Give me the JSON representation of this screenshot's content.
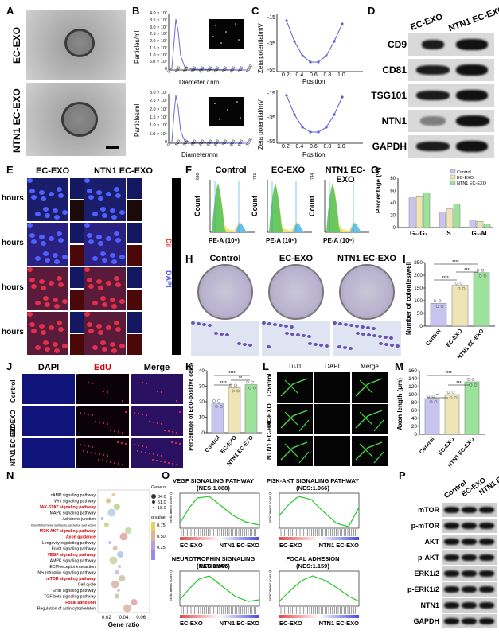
{
  "panels": [
    "A",
    "B",
    "C",
    "D",
    "E",
    "F",
    "G",
    "H",
    "I",
    "J",
    "K",
    "L",
    "M",
    "N",
    "O",
    "P"
  ],
  "panelA": {
    "rows": [
      "EC-EXO",
      "NTN1 EC-EXO"
    ]
  },
  "panelB": {
    "ylabel": "Particles/ml",
    "xlabel_top": "Diameter / nm",
    "xlabel_bottom": "Diameter/nm",
    "yticks_top": [
      "0",
      "5.0 × 10⁶",
      "1.0 × 10⁷",
      "1.5 × 10⁷",
      "2.0 × 10⁷",
      "2.5 × 10⁷",
      "3.0 × 10⁷",
      "3.5 × 10⁷",
      "4.0 × 10⁷"
    ],
    "yticks_bottom": [
      "0",
      "5.0 × 10⁶",
      "1.0 × 10⁷",
      "1.5 × 10⁷",
      "2.0 × 10⁷",
      "2.5 × 10⁷",
      "3.0 × 10⁷"
    ],
    "xticks": [
      "0",
      "100",
      "200",
      "300",
      "400",
      "500",
      "600",
      "700",
      "800",
      "900",
      "1000"
    ]
  },
  "panelC": {
    "ylabel": "Zeta potential/mV",
    "xlabel": "Position",
    "yticks": [
      "-55",
      "-35",
      "-15"
    ],
    "xticks": [
      "0.2",
      "0.4",
      "0.6",
      "0.8",
      "1.0"
    ]
  },
  "panelD": {
    "cols": [
      "EC-EXO",
      "NTN1 EC-EXO"
    ],
    "rows": [
      "CD9",
      "CD81",
      "TSG101",
      "NTN1",
      "GAPDH"
    ]
  },
  "panelE": {
    "cols": [
      "EC-EXO",
      "NTN1 EC-EXO"
    ],
    "rows": [
      "hours",
      "hours",
      "hours",
      "hours"
    ],
    "side": [
      "DiI",
      "DAPI"
    ]
  },
  "panelF": {
    "titles": [
      "Control",
      "EC-EXO",
      "NTN1 EC-EXO"
    ],
    "xlabel": "PE-A (10⁶)",
    "ylabel": "Count",
    "ymax": [
      "690",
      "731",
      "744"
    ]
  },
  "panelG": {
    "ylabel": "Percentage (%)",
    "categories": [
      "G₀-G₁",
      "S",
      "G₂-M"
    ],
    "legend": [
      "Control",
      "EC-EXO",
      "NTN1 EC-EXO"
    ],
    "yticks": [
      "0",
      "20",
      "40",
      "60",
      "80"
    ]
  },
  "panelH": {
    "titles": [
      "Control",
      "EC-EXO",
      "NTN1 EC-EXO"
    ]
  },
  "panelI": {
    "ylabel": "Number of colonies/well",
    "categories": [
      "Control",
      "EC-EXO",
      "NTN1 EC-EXO"
    ],
    "yticks": [
      "0",
      "50",
      "100",
      "150",
      "200",
      "250"
    ],
    "sig": [
      "****",
      "****",
      "***"
    ]
  },
  "panelJ": {
    "cols": [
      "DAPI",
      "EdU",
      "Merge"
    ],
    "rows": [
      "Control",
      "EC-EXO",
      "NTN1 EC-EXO"
    ]
  },
  "panelK": {
    "ylabel": "Percentage of EdU-positive cells (%)",
    "categories": [
      "Control",
      "EC-EXO",
      "NTN1 EC-EXO"
    ],
    "yticks": [
      "0",
      "10",
      "20",
      "30",
      "40"
    ],
    "sig": [
      "****",
      "****",
      "**"
    ]
  },
  "panelL": {
    "cols": [
      "TuJ1",
      "DAPI",
      "Merge"
    ],
    "rows": [
      "Control",
      "EC-EXO",
      "NTN1 EC-EXO"
    ]
  },
  "panelM": {
    "ylabel": "Axon length (μm)",
    "categories": [
      "Control",
      "EC-EXO",
      "NTN1 EC-EXO"
    ],
    "yticks": [
      "0",
      "20",
      "40",
      "60",
      "80",
      "100",
      "120",
      "140",
      "160"
    ],
    "sig": [
      "****",
      "**",
      "***"
    ]
  },
  "panelN": {
    "xlabel": "Gene ratio",
    "xticks": [
      "0.02",
      "0.04",
      "0.06"
    ],
    "pathways": [
      {
        "name": "cAMP signaling pathway",
        "red": false
      },
      {
        "name": "Wnt signaling pathway",
        "red": false
      },
      {
        "name": "JAK-STAT signaling pathway",
        "red": true
      },
      {
        "name": "MAPK signaling pathway",
        "red": false
      },
      {
        "name": "Adherens junction",
        "red": false
      },
      {
        "name": "Growth hormone synthesis, secretion and action",
        "red": false
      },
      {
        "name": "PI3K-AKT signaling pathway",
        "red": true
      },
      {
        "name": "Axon guidance",
        "red": true
      },
      {
        "name": "Longevity regulating pathway",
        "red": false
      },
      {
        "name": "FoxO signaling pathway",
        "red": false
      },
      {
        "name": "VEGF signaling pathway",
        "red": true
      },
      {
        "name": "AMPK signaling pathway",
        "red": false
      },
      {
        "name": "ECM-receptor interaction",
        "red": false
      },
      {
        "name": "Neurotrophin signaling pathway",
        "red": false
      },
      {
        "name": "mTOR signaling pathway",
        "red": true
      },
      {
        "name": "Cell cycle",
        "red": false
      },
      {
        "name": "ErbB signaling pathway",
        "red": false
      },
      {
        "name": "TGF-beta signaling pathway",
        "red": false
      },
      {
        "name": "Focal adhesion",
        "red": true
      },
      {
        "name": "Regulation of actin cytoskeleton",
        "red": false
      }
    ],
    "legend_size_title": "Gene number",
    "legend_sizes": [
      "84.0",
      "51.0",
      "18.0"
    ],
    "legend_color_title": "q value",
    "legend_colors": [
      "0.75",
      "0.50",
      "0.25"
    ]
  },
  "panelO": {
    "plots": [
      {
        "title": "VEGF SIGNALING PATHWAY",
        "nes": "(NES:1.088)"
      },
      {
        "title": "PI3K-AKT SIGNALING PATHWAY",
        "nes": "(NES:1.066)"
      },
      {
        "title": "NEUROTROPHIN SIGNALING PATHWAY",
        "nes": "(NES:1.086)"
      },
      {
        "title": "FOCAL ADHESION",
        "nes": "(NES:1.159)"
      }
    ],
    "ylabel": "Enrichment score (ES)",
    "xleft": "EC-EXO",
    "xright": "NTN1 EC-EXO"
  },
  "panelP": {
    "cols": [
      "Control",
      "EC-EXO",
      "NTN1 EC-EXO"
    ],
    "rows": [
      "mTOR",
      "p-mTOR",
      "AKT",
      "p-AKT",
      "ERK1/2",
      "p-ERK1/2",
      "NTN1",
      "GAPDH"
    ]
  },
  "colors": {
    "lavender": "#c9c4ef",
    "lightyellow": "#efe4b5",
    "green": "#7ad27a",
    "red": "#d40000"
  }
}
